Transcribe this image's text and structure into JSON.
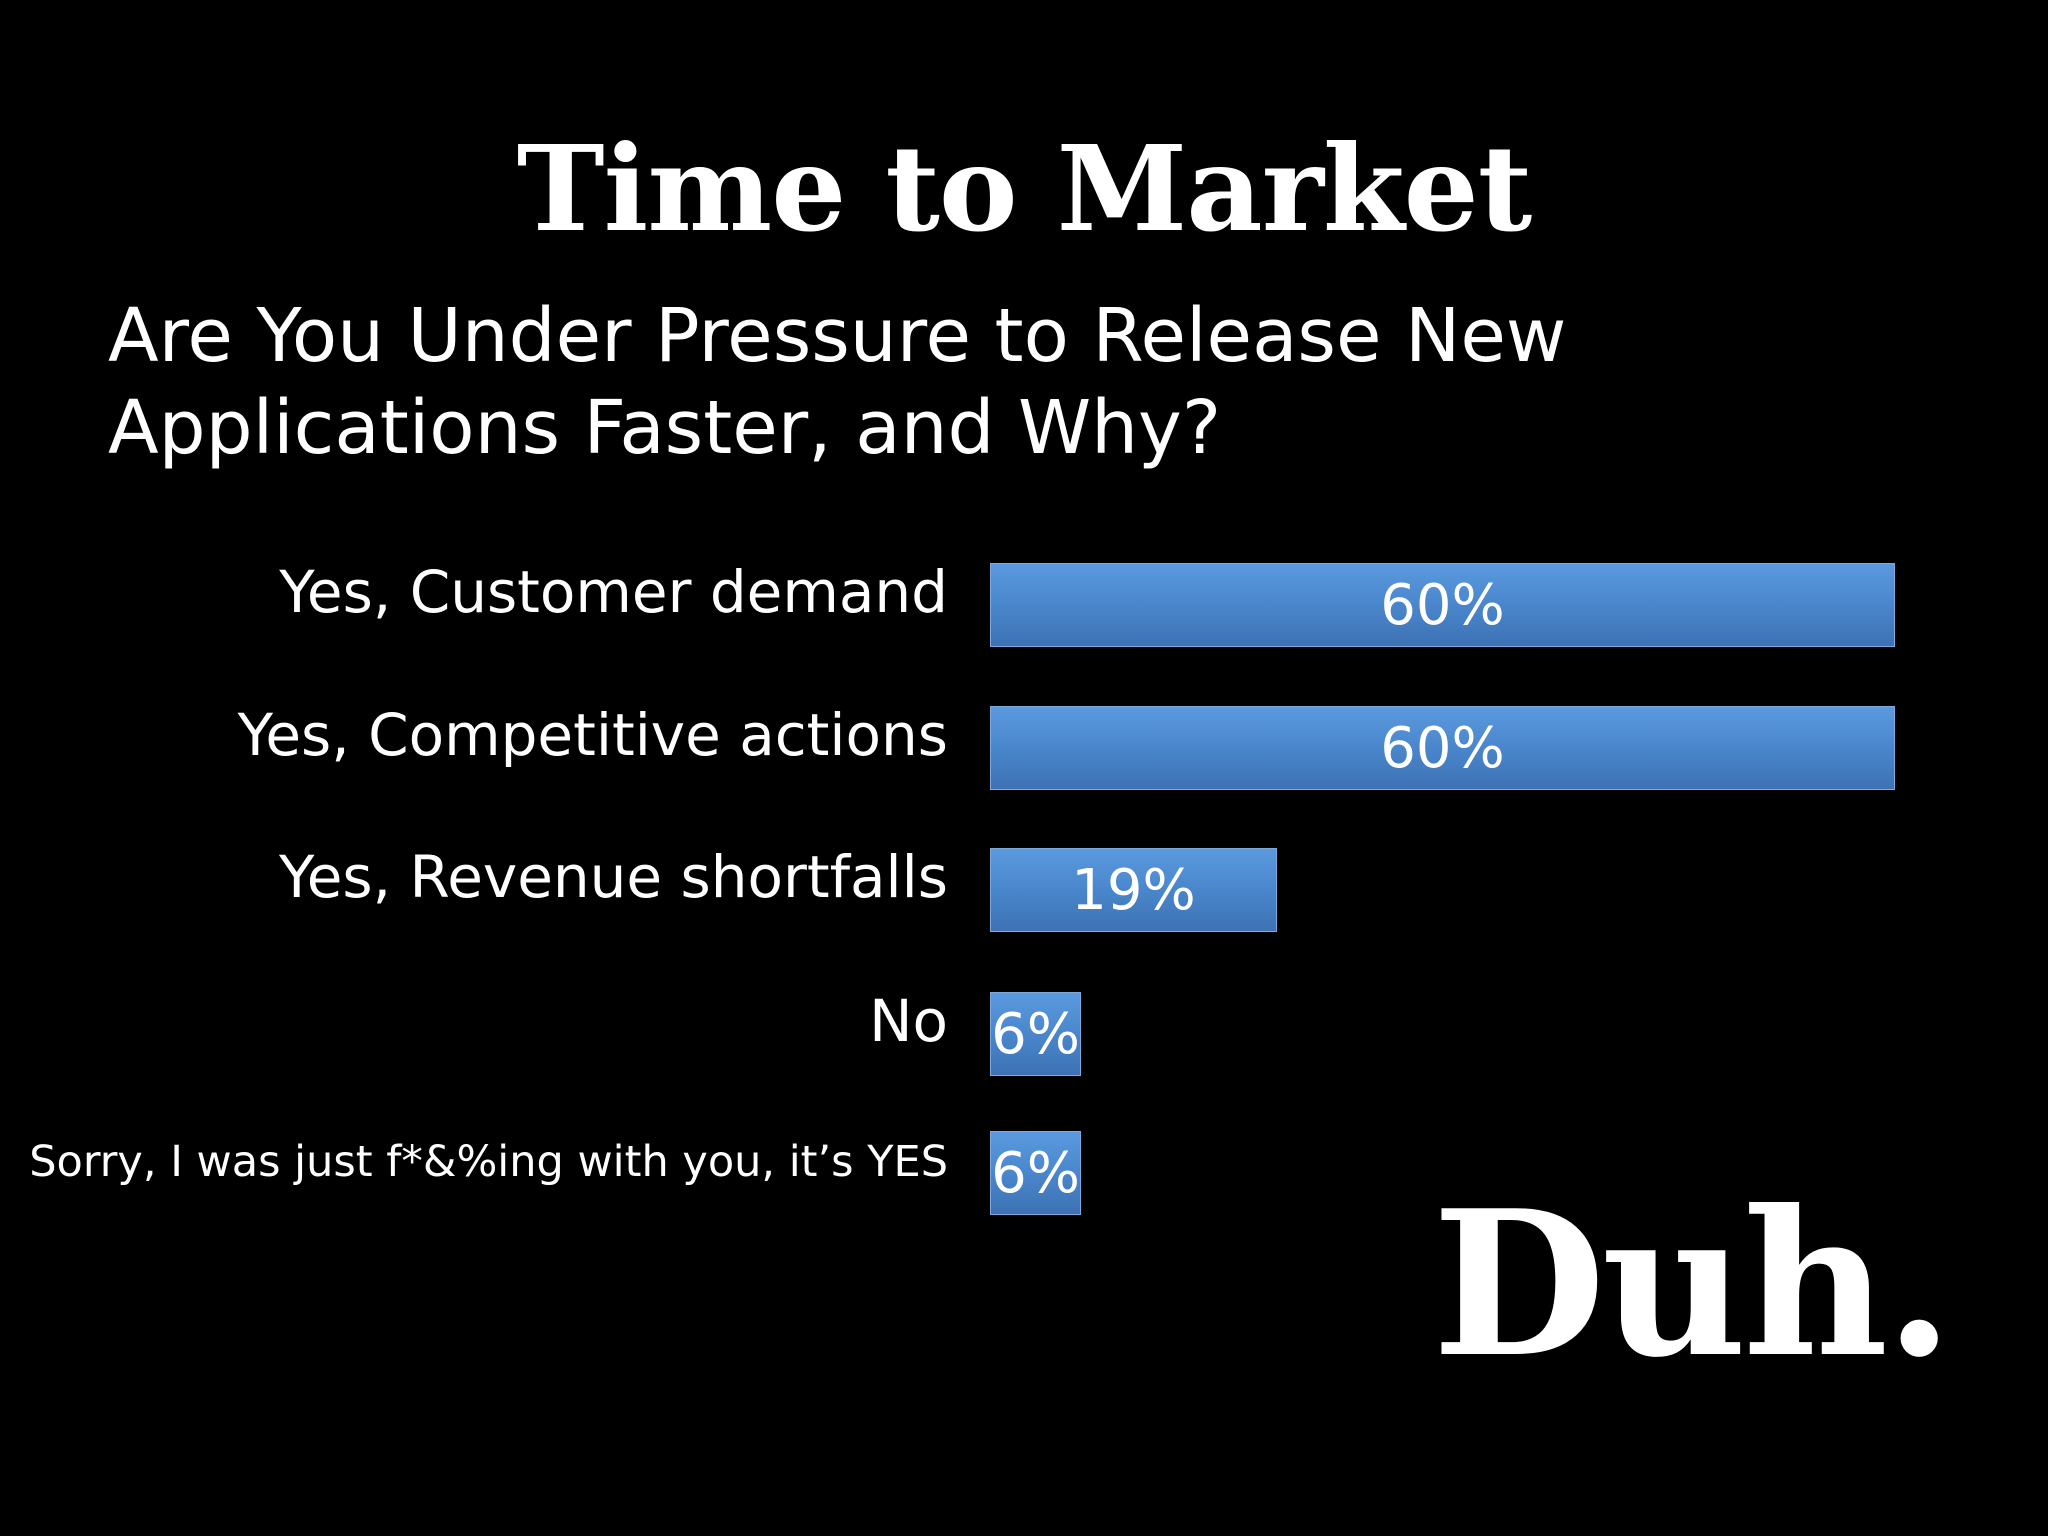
{
  "slide": {
    "title": "Time to Market",
    "subtitle": "Are You Under Pressure to Release New Applications Faster, and Why?",
    "footer": "Duh."
  },
  "colors": {
    "background": "#000000",
    "bar": "#4a86cc",
    "text": "#ffffff"
  },
  "chart_data": {
    "type": "bar",
    "orientation": "horizontal",
    "categories": [
      "Yes, Customer demand",
      "Yes, Competitive actions",
      "Yes, Revenue shortfalls",
      "No",
      "Sorry, I was just f*&%ing with you, it’s YES"
    ],
    "values": [
      60,
      60,
      19,
      6,
      6
    ],
    "value_labels": [
      "60%",
      "60%",
      "19%",
      "6%",
      "6%"
    ],
    "xlim": [
      0,
      60
    ],
    "grid": false,
    "legend": "none"
  }
}
